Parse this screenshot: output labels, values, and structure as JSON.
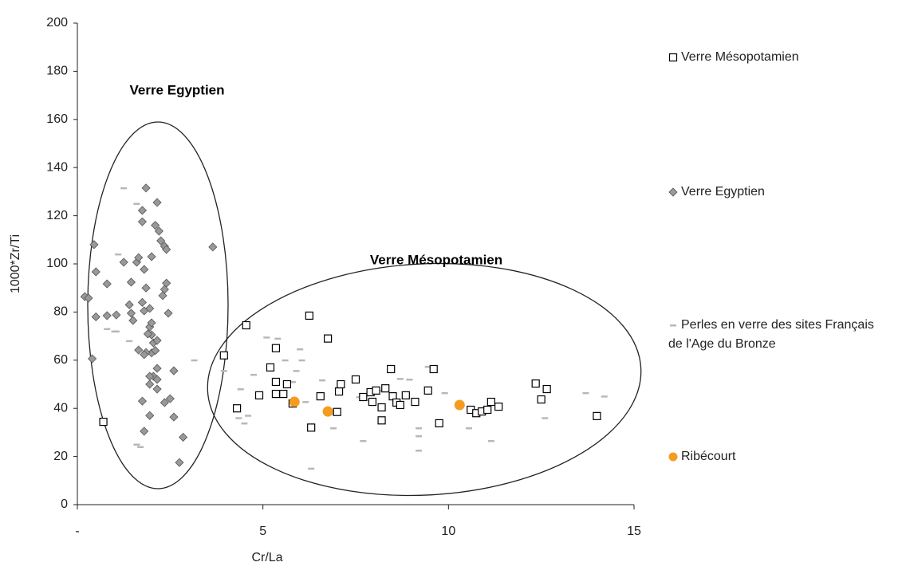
{
  "chart_data": {
    "type": "scatter",
    "xlabel": "Cr/La",
    "ylabel": "1000*Zr/Ti",
    "xlim": [
      0,
      15
    ],
    "ylim": [
      0,
      200
    ],
    "xticks": [
      {
        "value": 0,
        "label": "-"
      },
      5,
      10,
      15
    ],
    "yticks": [
      0,
      20,
      40,
      60,
      80,
      100,
      120,
      140,
      160,
      180,
      200
    ],
    "grid": false,
    "annotations": [
      "Verre Egyptien",
      "Verre Mésopotamien"
    ],
    "series": [
      {
        "name": "Verre Mésopotamien",
        "marker": "square",
        "color": "#000000",
        "x": [
          0.7,
          3.95,
          4.3,
          4.55,
          4.9,
          5.2,
          5.35,
          5.35,
          5.35,
          5.55,
          5.65,
          5.8,
          6.25,
          6.3,
          6.55,
          6.75,
          7.0,
          7.05,
          7.1,
          7.5,
          7.7,
          7.9,
          7.95,
          8.05,
          8.2,
          8.2,
          8.3,
          8.45,
          8.5,
          8.6,
          8.7,
          8.85,
          9.1,
          9.45,
          9.6,
          9.75,
          10.6,
          10.75,
          10.9,
          11.05,
          11.15,
          11.35,
          12.35,
          12.5,
          12.65,
          14.0
        ],
        "values": [
          34.4,
          62,
          40,
          74.5,
          45.4,
          57,
          65,
          51,
          46,
          46,
          50,
          42,
          78.5,
          32,
          45,
          69,
          38.5,
          47,
          50,
          52,
          44.7,
          46.7,
          42.7,
          47.4,
          35,
          40.4,
          48.3,
          56.3,
          45,
          42.4,
          41.4,
          45.4,
          42.7,
          47.4,
          56.3,
          33.8,
          39.4,
          38,
          38.7,
          39.4,
          42.7,
          40.7,
          50.3,
          43.7,
          48,
          36.8
        ]
      },
      {
        "name": "Verre Egyptien",
        "marker": "diamond",
        "color": "#999999",
        "x": [
          1.85,
          0.45,
          0.2,
          0.3,
          0.5,
          0.5,
          0.4,
          0.8,
          0.8,
          1.05,
          1.25,
          1.4,
          1.45,
          1.45,
          1.5,
          1.6,
          1.65,
          1.75,
          1.75,
          1.8,
          1.75,
          1.8,
          1.85,
          1.95,
          2.0,
          1.9,
          2.0,
          2.05,
          1.85,
          1.65,
          1.8,
          2.0,
          1.95,
          2.0,
          2.15,
          2.05,
          2.15,
          1.95,
          1.95,
          1.95,
          1.8,
          1.75,
          2.1,
          2.2,
          2.25,
          2.35,
          2.35,
          2.3,
          2.15,
          2.1,
          2.15,
          2.15,
          2.35,
          2.5,
          2.4,
          2.4,
          2.45,
          2.6,
          2.6,
          2.85,
          2.75,
          3.65
        ],
        "values": [
          131.5,
          108,
          86.4,
          85.8,
          96.7,
          78,
          60.6,
          78.5,
          91.7,
          78.8,
          100.7,
          83,
          92.4,
          79.5,
          76.5,
          100.7,
          102.6,
          122.2,
          117.5,
          97.7,
          84,
          80.5,
          90,
          73.8,
          70.5,
          70.9,
          63,
          67.2,
          63.2,
          64.2,
          62.3,
          75.5,
          81.5,
          103,
          125.5,
          53.3,
          56.6,
          50,
          53.3,
          37,
          30.5,
          43,
          116,
          113.6,
          109.6,
          107.3,
          89.4,
          86.8,
          68.2,
          64,
          52,
          48,
          42.4,
          44,
          106,
          92,
          79.5,
          55.6,
          36.4,
          28,
          17.5,
          107
        ]
      },
      {
        "name": "Perles en verre des sites Français de l'Age du Bronze",
        "marker": "dash",
        "color": "#b8b8b8",
        "x": [
          1.25,
          1.6,
          1.1,
          0.8,
          1.0,
          1.05,
          1.4,
          1.6,
          1.7,
          3.15,
          3.95,
          4.35,
          4.5,
          4.6,
          4.4,
          4.75,
          5.1,
          5.4,
          5.6,
          5.8,
          5.9,
          6.0,
          6.05,
          6.15,
          6.3,
          6.6,
          6.9,
          6.9,
          7.6,
          7.7,
          7.9,
          8.2,
          8.7,
          8.95,
          9.2,
          9.2,
          9.2,
          9.45,
          9.9,
          10.55,
          11.15,
          12.6,
          13.7,
          14.2
        ],
        "values": [
          131.5,
          125,
          104,
          73,
          72,
          72,
          68,
          25,
          24,
          60,
          55.6,
          36,
          33.8,
          37,
          48,
          54,
          69.5,
          69,
          60,
          51,
          55.6,
          64.6,
          60,
          42.7,
          15,
          51.7,
          37.7,
          31.8,
          44.7,
          26.5,
          43.4,
          47.4,
          52.3,
          52,
          31.8,
          28.5,
          22.5,
          57.3,
          46.4,
          31.8,
          26.5,
          36,
          46.4,
          45
        ]
      },
      {
        "name": "Ribécourt",
        "marker": "circle",
        "color": "#f39c1f",
        "x": [
          5.85,
          6.75,
          10.3
        ],
        "values": [
          42.7,
          38.7,
          41.4
        ]
      }
    ]
  }
}
